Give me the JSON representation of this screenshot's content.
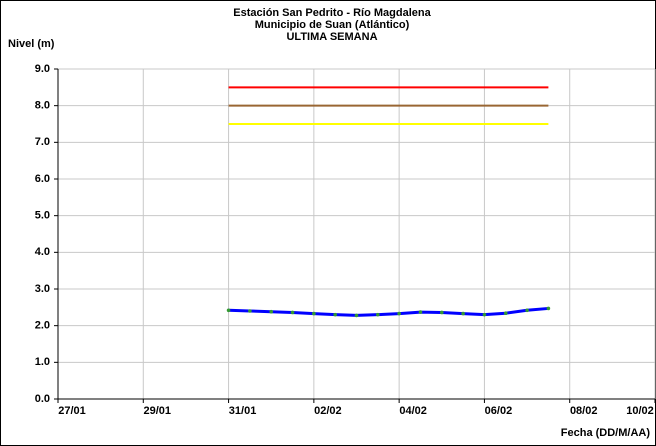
{
  "chart_data": {
    "type": "line",
    "title": [
      "Estación San Pedrito - Río Magdalena",
      "Municipio de Suan (Atlántico)",
      "ULTIMA SEMANA"
    ],
    "ylabel": "Nivel (m)",
    "xlabel": "Fecha (DD/M/AA)",
    "xlim": [
      0,
      14
    ],
    "xticks": [
      {
        "value": 0,
        "label": "27/01"
      },
      {
        "value": 2,
        "label": "29/01"
      },
      {
        "value": 4,
        "label": "31/01"
      },
      {
        "value": 6,
        "label": "02/02"
      },
      {
        "value": 8,
        "label": "04/02"
      },
      {
        "value": 10,
        "label": "06/02"
      },
      {
        "value": 12,
        "label": "08/02"
      },
      {
        "value": 14,
        "label": "10/02"
      }
    ],
    "ylim": [
      0,
      9
    ],
    "yticks": [
      {
        "value": 0,
        "label": "0.0"
      },
      {
        "value": 1,
        "label": "1.0"
      },
      {
        "value": 2,
        "label": "2.0"
      },
      {
        "value": 3,
        "label": "3.0"
      },
      {
        "value": 4,
        "label": "4.0"
      },
      {
        "value": 5,
        "label": "5.0"
      },
      {
        "value": 6,
        "label": "6.0"
      },
      {
        "value": 7,
        "label": "7.0"
      },
      {
        "value": 8,
        "label": "8.0"
      },
      {
        "value": 9,
        "label": "9.0"
      }
    ],
    "grid": true,
    "thresholds": [
      {
        "value": 8.5,
        "color": "#ff0000"
      },
      {
        "value": 8.0,
        "color": "#996633"
      },
      {
        "value": 7.5,
        "color": "#ffff00"
      }
    ],
    "threshold_x": [
      4,
      11.5
    ],
    "x": [
      4,
      4.5,
      5,
      5.5,
      6,
      6.5,
      7,
      7.5,
      8,
      8.5,
      9,
      9.5,
      10,
      10.5,
      11,
      11.5
    ],
    "values": [
      2.42,
      2.4,
      2.38,
      2.36,
      2.33,
      2.3,
      2.28,
      2.3,
      2.33,
      2.37,
      2.36,
      2.33,
      2.3,
      2.34,
      2.42,
      2.47
    ],
    "color": "#0000ff",
    "marker_color": "#339933"
  }
}
